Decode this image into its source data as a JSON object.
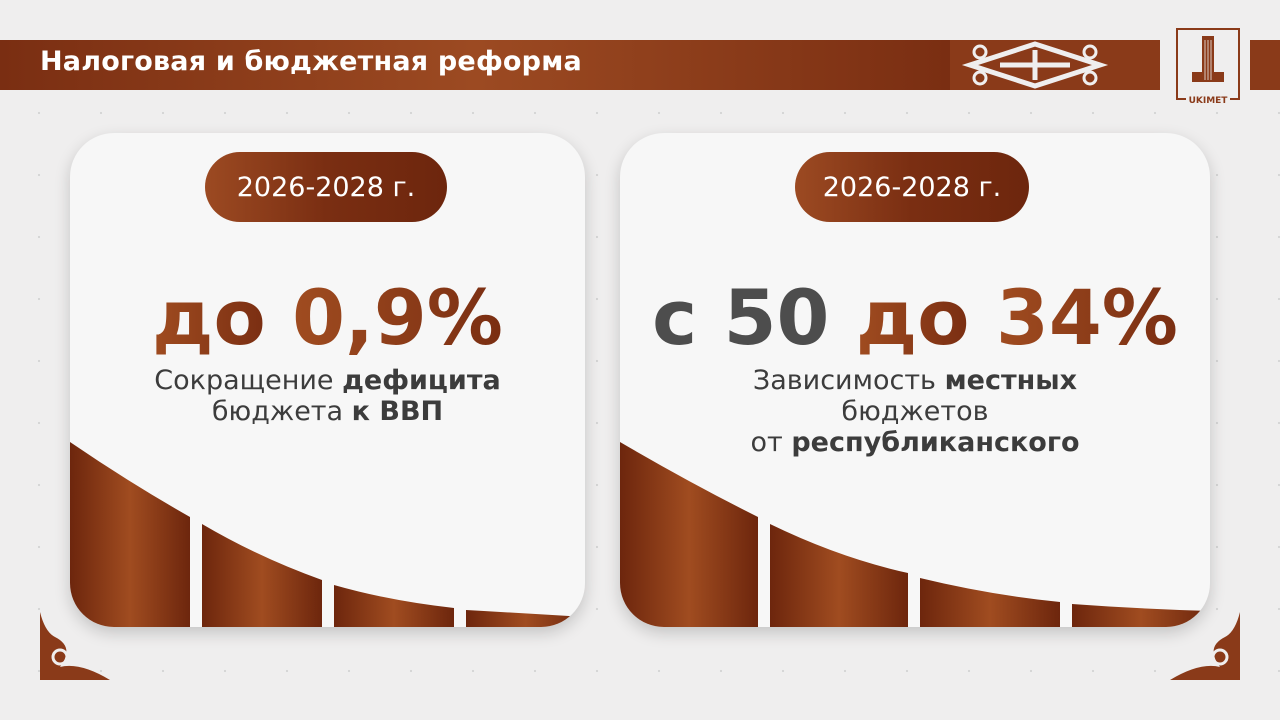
{
  "header": {
    "title": "Налоговая и бюджетная реформа",
    "logo_text": "UKIMET"
  },
  "cards": [
    {
      "period": "2026-2028 г.",
      "value_prefix": "до",
      "value": "0,9%",
      "desc_1": "Сокращение ",
      "desc_1b": "дефицита",
      "desc_2": "бюджета ",
      "desc_2b": "к ВВП"
    },
    {
      "period": "2026-2028 г.",
      "value_prefix": "с",
      "value_from": "50",
      "value_mid": "до",
      "value": "34%",
      "desc_1": "Зависимость ",
      "desc_1b": "местных",
      "desc_2": "бюджетов",
      "desc_3": "от ",
      "desc_3b": "республиканского"
    }
  ],
  "colors": {
    "brand": "#8a3a19",
    "brand_light": "#a04c20",
    "text": "#3c3c3c"
  }
}
